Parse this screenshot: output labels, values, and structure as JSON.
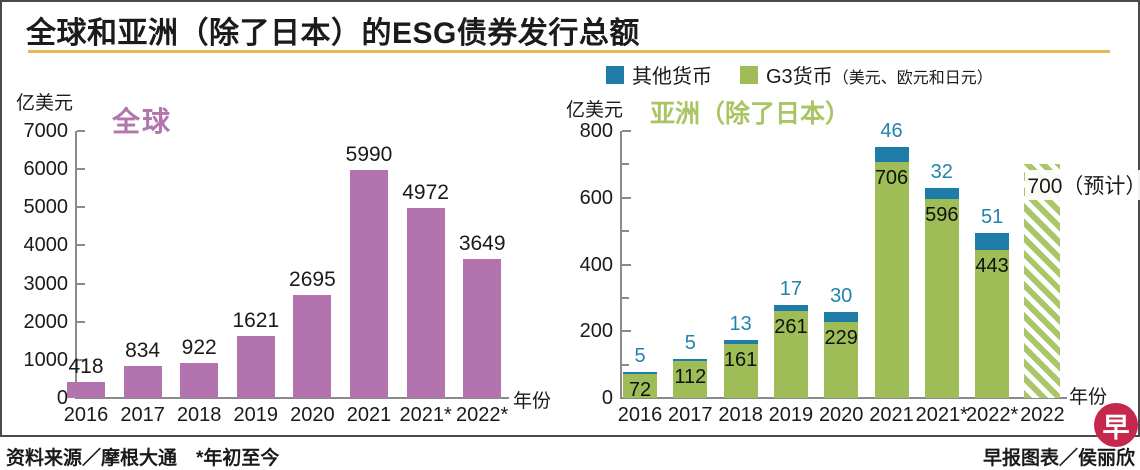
{
  "title": "全球和亚洲（除了日本）的ESG债券发行总额",
  "legend": {
    "other_label": "其他货币",
    "g3_label": "G3货币",
    "g3_note": "（美元、欧元和日元）"
  },
  "footer": {
    "source": "资料来源／摩根大通",
    "note": "*年初至今",
    "credit": "早报图表／侯丽欣",
    "logo_text": "早"
  },
  "colors": {
    "global_bar": "#b273ae",
    "g3_green": "#9ebd56",
    "other_blue": "#1f7ca8",
    "blue_label": "#2383ad",
    "gold_rule": "#eab655",
    "axis_gray": "#8a8a8a",
    "logo_red": "#c5274d"
  },
  "chart_data": [
    {
      "type": "bar",
      "title": "全球",
      "unit_label": "亿美元",
      "xlabel": "年份",
      "categories": [
        "2016",
        "2017",
        "2018",
        "2019",
        "2020",
        "2021",
        "2021*",
        "2022*"
      ],
      "values": [
        418,
        834,
        922,
        1621,
        2695,
        5990,
        4972,
        3649
      ],
      "ylim": [
        0,
        7000
      ],
      "ytick_step": 1000,
      "grid": false,
      "bar_color": "#b273ae"
    },
    {
      "type": "bar",
      "stacked": true,
      "title": "亚洲（除了日本）",
      "unit_label": "亿美元",
      "xlabel": "年份",
      "categories": [
        "2016",
        "2017",
        "2018",
        "2019",
        "2020",
        "2021",
        "2021*",
        "2022*",
        "2022"
      ],
      "series": [
        {
          "name": "G3货币（美元、欧元和日元）",
          "color": "#9ebd56",
          "values": [
            72,
            112,
            161,
            261,
            229,
            706,
            596,
            443,
            null
          ]
        },
        {
          "name": "其他货币",
          "color": "#1f7ca8",
          "values": [
            5,
            5,
            13,
            17,
            30,
            46,
            32,
            51,
            null
          ]
        }
      ],
      "forecast": {
        "category": "2022",
        "value": 700,
        "label": "700（预计）",
        "style": "hatched"
      },
      "ylim": [
        0,
        800
      ],
      "ytick_major": 200,
      "ytick_minor": 100,
      "grid": false,
      "legend_position": "top-right"
    }
  ]
}
